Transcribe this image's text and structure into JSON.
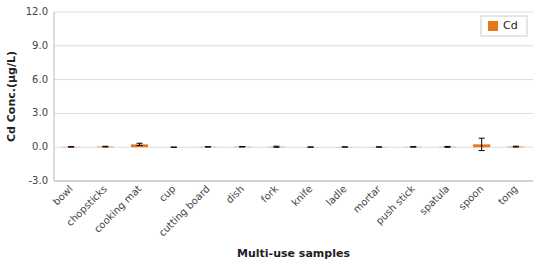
{
  "chart_data": {
    "type": "bar",
    "xlabel": "Multi-use samples",
    "ylabel": "Cd Conc.(μg/L)",
    "categories": [
      "bowl",
      "chopsticks",
      "cooking mat",
      "cup",
      "cutting board",
      "dish",
      "fork",
      "knife",
      "ladle",
      "mortar",
      "push stick",
      "spatula",
      "spoon",
      "tong"
    ],
    "series": [
      {
        "name": "Cd",
        "color": "#E8761A",
        "values": [
          0.03,
          0.05,
          0.25,
          0.0,
          0.03,
          0.04,
          0.04,
          0.01,
          0.02,
          0.02,
          0.03,
          0.03,
          0.25,
          0.05
        ],
        "errors": [
          0.02,
          0.03,
          0.1,
          0.01,
          0.01,
          0.02,
          0.05,
          0.01,
          0.01,
          0.01,
          0.02,
          0.04,
          0.55,
          0.04
        ]
      }
    ],
    "ylim": [
      -3.0,
      12.0
    ],
    "yticks": [
      {
        "value": -3.0,
        "label": "-3.0"
      },
      {
        "value": 0.0,
        "label": "0.0"
      },
      {
        "value": 3.0,
        "label": "3.0"
      },
      {
        "value": 6.0,
        "label": "6.0"
      },
      {
        "value": 9.0,
        "label": "9.0"
      },
      {
        "value": 12.0,
        "label": "12.0"
      }
    ],
    "grid": true,
    "legend": "upper right"
  }
}
